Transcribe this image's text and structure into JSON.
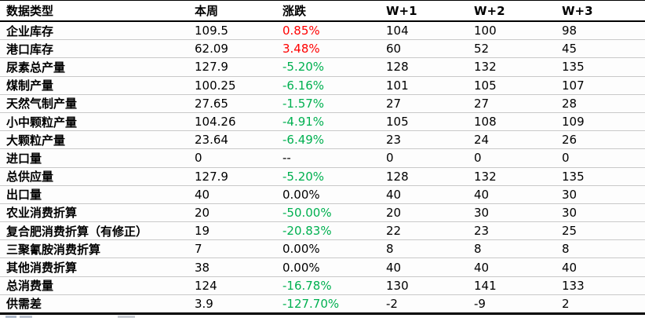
{
  "colors": {
    "positive_change": "#ff0000",
    "negative_change": "#00b050",
    "neutral_text": "#000000",
    "grid_line": "#c9c9c9",
    "heavy_border": "#000000",
    "background": "#ffffff"
  },
  "chart_data": {
    "type": "table",
    "title": "",
    "columns": [
      {
        "key": "label",
        "label": "数据类型"
      },
      {
        "key": "this_week",
        "label": "本周"
      },
      {
        "key": "change",
        "label": "涨跌"
      },
      {
        "key": "w1",
        "label": "W+1"
      },
      {
        "key": "w2",
        "label": "W+2"
      },
      {
        "key": "w3",
        "label": "W+3"
      }
    ],
    "rows": [
      {
        "label": "企业库存",
        "this_week": "109.5",
        "change": "0.85%",
        "change_cls": "pos",
        "w1": "104",
        "w2": "100",
        "w3": "98"
      },
      {
        "label": "港口库存",
        "this_week": "62.09",
        "change": "3.48%",
        "change_cls": "pos",
        "w1": "60",
        "w2": "52",
        "w3": "45"
      },
      {
        "label": "尿素总产量",
        "this_week": "127.9",
        "change": "-5.20%",
        "change_cls": "neg",
        "w1": "128",
        "w2": "132",
        "w3": "135"
      },
      {
        "label": "煤制产量",
        "this_week": "100.25",
        "change": "-6.16%",
        "change_cls": "neg",
        "w1": "101",
        "w2": "105",
        "w3": "107"
      },
      {
        "label": "天然气制产量",
        "this_week": "27.65",
        "change": "-1.57%",
        "change_cls": "neg",
        "w1": "27",
        "w2": "27",
        "w3": "28"
      },
      {
        "label": "小中颗粒产量",
        "this_week": "104.26",
        "change": "-4.91%",
        "change_cls": "neg",
        "w1": "105",
        "w2": "108",
        "w3": "109"
      },
      {
        "label": "大颗粒产量",
        "this_week": "23.64",
        "change": "-6.49%",
        "change_cls": "neg",
        "w1": "23",
        "w2": "24",
        "w3": "26"
      },
      {
        "label": "进口量",
        "this_week": "0",
        "change": "--",
        "change_cls": "flat",
        "w1": "0",
        "w2": "0",
        "w3": "0"
      },
      {
        "label": "总供应量",
        "this_week": "127.9",
        "change": "-5.20%",
        "change_cls": "neg",
        "w1": "128",
        "w2": "132",
        "w3": "135"
      },
      {
        "label": "出口量",
        "this_week": "40",
        "change": "0.00%",
        "change_cls": "flat",
        "w1": "40",
        "w2": "40",
        "w3": "30"
      },
      {
        "label": "农业消费折算",
        "this_week": "20",
        "change": "-50.00%",
        "change_cls": "neg",
        "w1": "20",
        "w2": "30",
        "w3": "30"
      },
      {
        "label": "复合肥消费折算（有修正）",
        "this_week": "19",
        "change": "-20.83%",
        "change_cls": "neg",
        "w1": "22",
        "w2": "23",
        "w3": "25"
      },
      {
        "label": "三聚氰胺消费折算",
        "this_week": "7",
        "change": "0.00%",
        "change_cls": "flat",
        "w1": "8",
        "w2": "8",
        "w3": "8"
      },
      {
        "label": "其他消费折算",
        "this_week": "38",
        "change": "0.00%",
        "change_cls": "flat",
        "w1": "40",
        "w2": "40",
        "w3": "40"
      },
      {
        "label": "总消费量",
        "this_week": "124",
        "change": "-16.78%",
        "change_cls": "neg",
        "w1": "130",
        "w2": "141",
        "w3": "133"
      },
      {
        "label": "供需差",
        "this_week": "3.9",
        "change": "-127.70%",
        "change_cls": "neg",
        "w1": "-2",
        "w2": "-9",
        "w3": "2"
      }
    ]
  }
}
